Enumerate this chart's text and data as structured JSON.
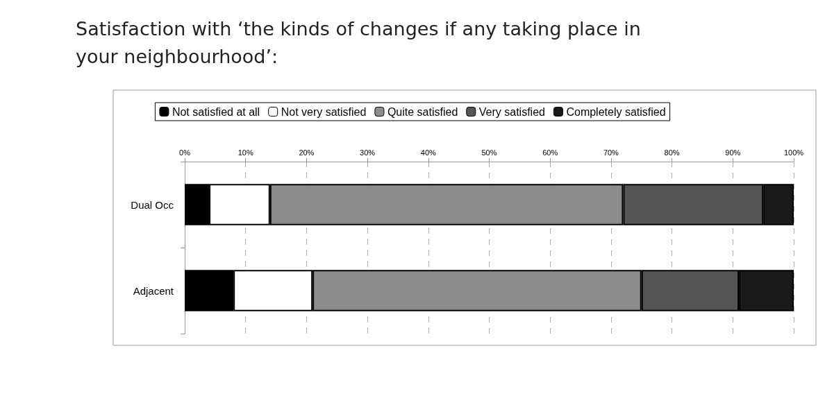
{
  "chart_data": {
    "type": "bar",
    "title": "Satisfaction with ‘the kinds of changes if any taking place in your neighbourhood’:",
    "orientation": "horizontal",
    "stacked": true,
    "categories": [
      "Dual Occ",
      "Adjacent"
    ],
    "series": [
      {
        "name": "Not satisfied at all",
        "color": "#000000",
        "values": [
          4,
          8
        ]
      },
      {
        "name": "Not very satisfied",
        "color": "#ffffff",
        "values": [
          10,
          13
        ]
      },
      {
        "name": "Quite satisfied",
        "color": "#8c8c8c",
        "values": [
          58,
          54
        ]
      },
      {
        "name": "Very satisfied",
        "color": "#555555",
        "values": [
          23,
          16
        ]
      },
      {
        "name": "Completely satisfied",
        "color": "#1a1a1a",
        "values": [
          5,
          9
        ]
      }
    ],
    "xlim": [
      0,
      100
    ],
    "xticks": [
      {
        "value": 0,
        "label": "0%"
      },
      {
        "value": 10,
        "label": "10%"
      },
      {
        "value": 20,
        "label": "20%"
      },
      {
        "value": 30,
        "label": "30%"
      },
      {
        "value": 40,
        "label": "40%"
      },
      {
        "value": 50,
        "label": "50%"
      },
      {
        "value": 60,
        "label": "60%"
      },
      {
        "value": 70,
        "label": "70%"
      },
      {
        "value": 80,
        "label": "80%"
      },
      {
        "value": 90,
        "label": "90%"
      },
      {
        "value": 100,
        "label": "100%"
      }
    ],
    "grid": "x",
    "legend": "top"
  }
}
